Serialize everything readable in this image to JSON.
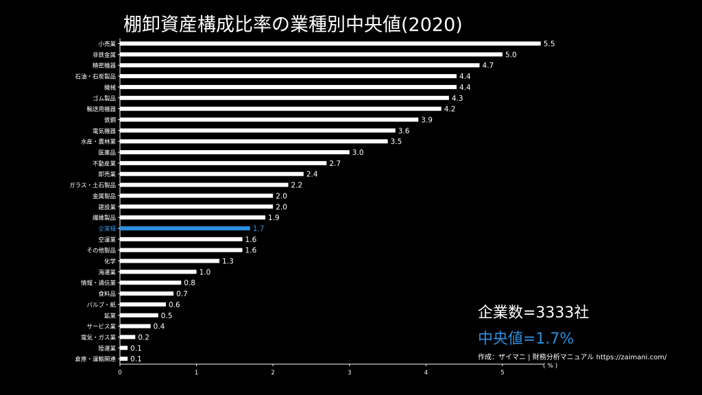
{
  "chart_data": {
    "type": "bar",
    "orientation": "horizontal",
    "title": "棚卸資産構成比率の業種別中央値(2020)",
    "categories": [
      "小売業",
      "非鉄金属",
      "精密機器",
      "石油・石炭製品",
      "機械",
      "ゴム製品",
      "輸送用機器",
      "鉄鋼",
      "電気機器",
      "水産・農林業",
      "医薬品",
      "不動産業",
      "卸売業",
      "ガラス・土石製品",
      "金属製品",
      "建設業",
      "繊維製品",
      "全業種",
      "空運業",
      "その他製品",
      "化学",
      "海運業",
      "情報・通信業",
      "食料品",
      "パルプ・紙",
      "鉱業",
      "サービス業",
      "電気・ガス業",
      "陸運業",
      "倉庫・運輸関連"
    ],
    "values": [
      5.5,
      5.0,
      4.7,
      4.4,
      4.4,
      4.3,
      4.2,
      3.9,
      3.6,
      3.5,
      3.0,
      2.7,
      2.4,
      2.2,
      2.0,
      2.0,
      1.9,
      1.7,
      1.6,
      1.6,
      1.3,
      1.0,
      0.8,
      0.7,
      0.6,
      0.5,
      0.4,
      0.2,
      0.1,
      0.1
    ],
    "value_labels": [
      "5.5",
      "5.0",
      "4.7",
      "4.4",
      "4.4",
      "4.3",
      "4.2",
      "3.9",
      "3.6",
      "3.5",
      "3.0",
      "2.7",
      "2.4",
      "2.2",
      "2.0",
      "2.0",
      "1.9",
      "1.7",
      "1.6",
      "1.6",
      "1.3",
      "1.0",
      "0.8",
      "0.7",
      "0.6",
      "0.5",
      "0.4",
      "0.2",
      "0.1",
      "0.1"
    ],
    "highlight_category": "全業種",
    "xlim": [
      0,
      5.5
    ],
    "xticks": [
      "0",
      "1",
      "2",
      "3",
      "4",
      "5"
    ],
    "xlabel": "( % )",
    "grid": false,
    "bar_color": "#ffffff",
    "highlight_color": "#2b8fe0",
    "background": "#000000"
  },
  "notes": {
    "count": "企業数=3333社",
    "median": "中央値=1.7%",
    "credit": "作成：ザイマニ | 財務分析マニュアル https://zaimani.com/"
  }
}
